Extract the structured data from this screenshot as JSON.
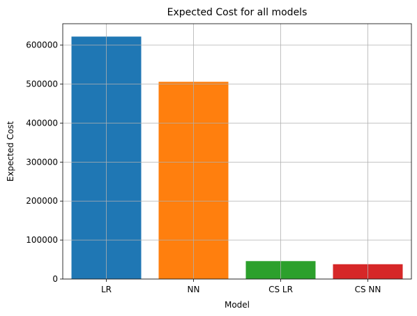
{
  "chart_data": {
    "type": "bar",
    "title": "Expected Cost for all models",
    "xlabel": "Model",
    "ylabel": "Expected Cost",
    "categories": [
      "LR",
      "NN",
      "CS LR",
      "CS NN"
    ],
    "values": [
      622000,
      506000,
      46000,
      38000
    ],
    "colors": [
      "#1f77b4",
      "#ff7f0e",
      "#2ca02c",
      "#d62728"
    ],
    "ylim": [
      0,
      655000
    ],
    "yticks": [
      0,
      100000,
      200000,
      300000,
      400000,
      500000,
      600000
    ],
    "ytick_labels": [
      "0",
      "100000",
      "200000",
      "300000",
      "400000",
      "500000",
      "600000"
    ],
    "grid": true
  }
}
